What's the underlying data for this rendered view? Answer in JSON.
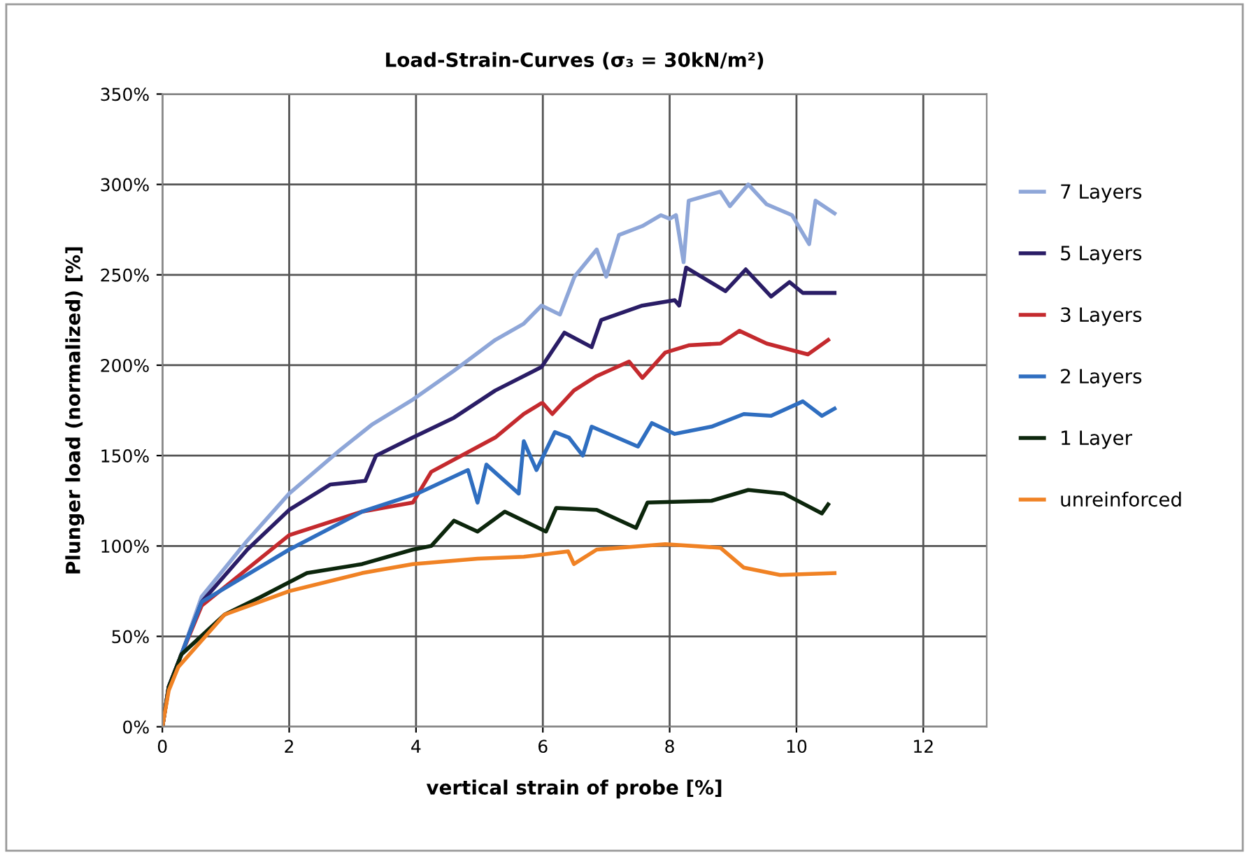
{
  "chart_data": {
    "type": "line",
    "title": "Load-Strain-Curves (σ₃ = 30kN/m²)",
    "xlabel": "vertical strain of probe [%]",
    "ylabel": "Plunger load (normalized) [%]",
    "xlim": [
      0,
      13
    ],
    "xticks": [
      0,
      2,
      4,
      6,
      8,
      10,
      12
    ],
    "ylim": [
      0,
      350
    ],
    "yticks": [
      {
        "value": 0,
        "label": "0%"
      },
      {
        "value": 50,
        "label": "50%"
      },
      {
        "value": 100,
        "label": "100%"
      },
      {
        "value": 150,
        "label": "150%"
      },
      {
        "value": 200,
        "label": "200%"
      },
      {
        "value": 250,
        "label": "250%"
      },
      {
        "value": 300,
        "label": "300%"
      },
      {
        "value": 350,
        "label": "350%"
      }
    ],
    "grid": true,
    "legend": "right",
    "marker": "none",
    "line_style": "solid",
    "series": [
      {
        "name": "7 Layers",
        "color": "#8ea6d8",
        "x": [
          0,
          0.1,
          0.3,
          0.62,
          1.34,
          2.0,
          2.8,
          3.3,
          3.95,
          4.6,
          5.25,
          5.7,
          5.98,
          6.27,
          6.5,
          6.85,
          7.0,
          7.2,
          7.57,
          7.86,
          8.0,
          8.1,
          8.22,
          8.3,
          8.8,
          8.95,
          9.24,
          9.53,
          9.93,
          10.2,
          10.3,
          10.6
        ],
        "values": [
          0,
          22,
          40,
          72,
          103,
          129,
          153,
          167,
          181,
          197,
          214,
          223,
          233,
          228,
          249,
          264,
          249,
          272,
          277,
          283,
          281,
          283,
          257,
          291,
          296,
          288,
          300,
          289,
          283,
          267,
          291,
          284
        ]
      },
      {
        "name": "5 Layers",
        "color": "#2a1d66",
        "x": [
          0,
          0.1,
          0.3,
          0.62,
          1.34,
          2.0,
          2.65,
          3.2,
          3.37,
          3.95,
          4.6,
          5.25,
          5.98,
          6.34,
          6.77,
          6.92,
          7.57,
          8.08,
          8.15,
          8.26,
          8.88,
          9.2,
          9.6,
          9.89,
          10.1,
          10.6
        ],
        "values": [
          0,
          22,
          40,
          69,
          98,
          120,
          134,
          136,
          150,
          160,
          171,
          186,
          199,
          218,
          210,
          225,
          233,
          236,
          233,
          254,
          241,
          253,
          238,
          246,
          240,
          240
        ]
      },
      {
        "name": "3 Layers",
        "color": "#c42a2e",
        "x": [
          0,
          0.1,
          0.3,
          0.62,
          2.0,
          3.15,
          3.95,
          4.24,
          5.25,
          5.7,
          5.98,
          6.0,
          6.15,
          6.49,
          6.85,
          7.36,
          7.57,
          7.93,
          8.3,
          8.8,
          9.1,
          9.53,
          10.18,
          10.5
        ],
        "values": [
          0,
          22,
          40,
          67,
          106,
          119,
          124,
          141,
          160,
          173,
          179,
          179,
          173,
          186,
          194,
          202,
          193,
          207,
          211,
          212,
          219,
          212,
          206,
          214
        ]
      },
      {
        "name": "2 Layers",
        "color": "#2f6ec0",
        "x": [
          0,
          0.1,
          0.3,
          0.62,
          2.0,
          3.15,
          4.02,
          4.82,
          4.97,
          5.11,
          5.62,
          5.7,
          5.76,
          5.9,
          6.19,
          6.41,
          6.63,
          6.77,
          7.5,
          7.72,
          8.08,
          8.66,
          9.17,
          9.6,
          10.1,
          10.4,
          10.6
        ],
        "values": [
          0,
          22,
          40,
          69,
          98,
          119,
          129,
          142,
          124,
          145,
          129,
          158,
          153,
          142,
          163,
          160,
          150,
          166,
          155,
          168,
          162,
          166,
          173,
          172,
          180,
          172,
          176
        ]
      },
      {
        "name": "1 Layer",
        "color": "#0c260c",
        "x": [
          0,
          0.1,
          0.3,
          0.98,
          1.56,
          2.28,
          3.15,
          3.95,
          4.24,
          4.6,
          4.97,
          5.4,
          6.05,
          6.21,
          6.85,
          7.47,
          7.65,
          8.66,
          9.24,
          9.8,
          10.4,
          10.5
        ],
        "values": [
          0,
          22,
          40,
          62,
          72,
          85,
          90,
          98,
          100,
          114,
          108,
          119,
          108,
          121,
          120,
          110,
          124,
          125,
          131,
          129,
          118,
          123
        ]
      },
      {
        "name": "unreinforced",
        "color": "#f08224",
        "x": [
          0,
          0.1,
          0.25,
          0.98,
          2.0,
          3.15,
          3.95,
          4.97,
          5.7,
          6.4,
          6.49,
          6.85,
          7.93,
          8.8,
          9.17,
          9.74,
          10.6
        ],
        "values": [
          0,
          20,
          33,
          62,
          75,
          85,
          90,
          93,
          94,
          97,
          90,
          98,
          101,
          99,
          88,
          84,
          85
        ]
      }
    ]
  }
}
